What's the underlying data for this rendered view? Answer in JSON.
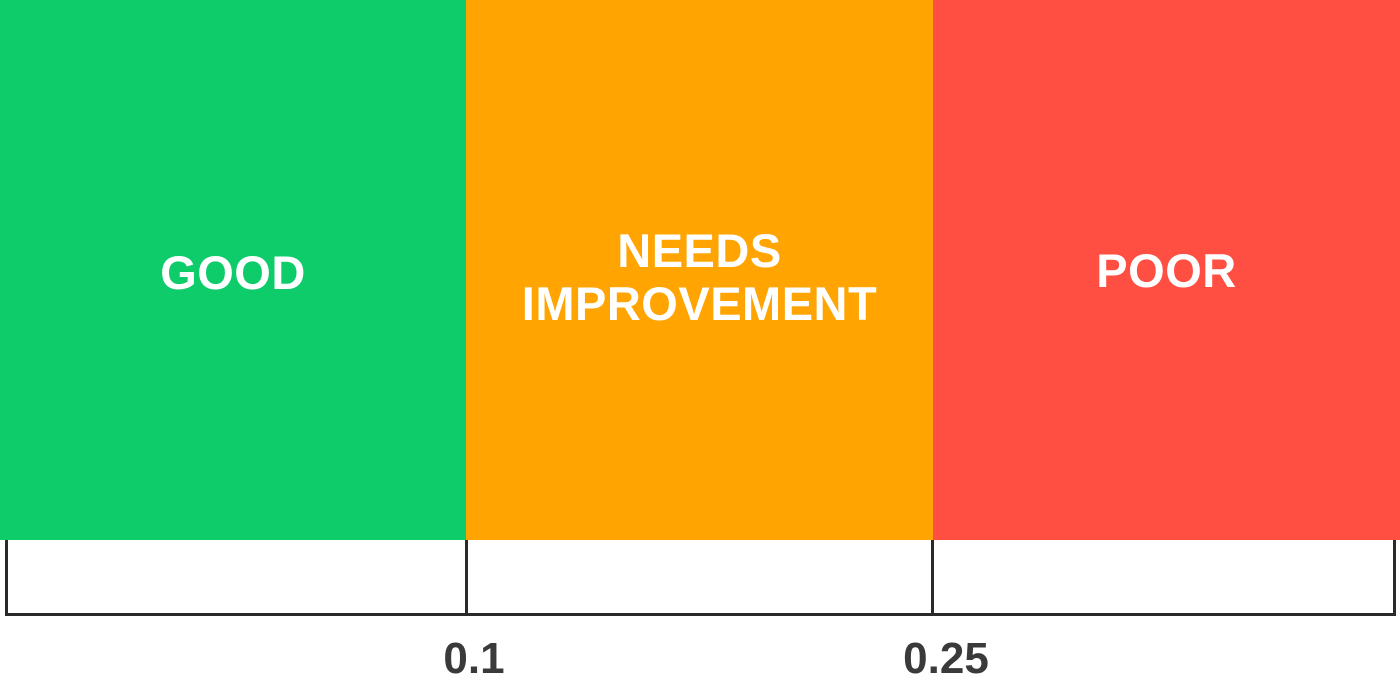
{
  "bands": [
    {
      "label": "GOOD",
      "color": "#0ecc6a"
    },
    {
      "label": "NEEDS\nIMPROVEMENT",
      "color": "#ffa400"
    },
    {
      "label": "POOR",
      "color": "#ff4e42"
    }
  ],
  "axis": {
    "tick_labels": [
      "0.1",
      "0.25"
    ]
  }
}
